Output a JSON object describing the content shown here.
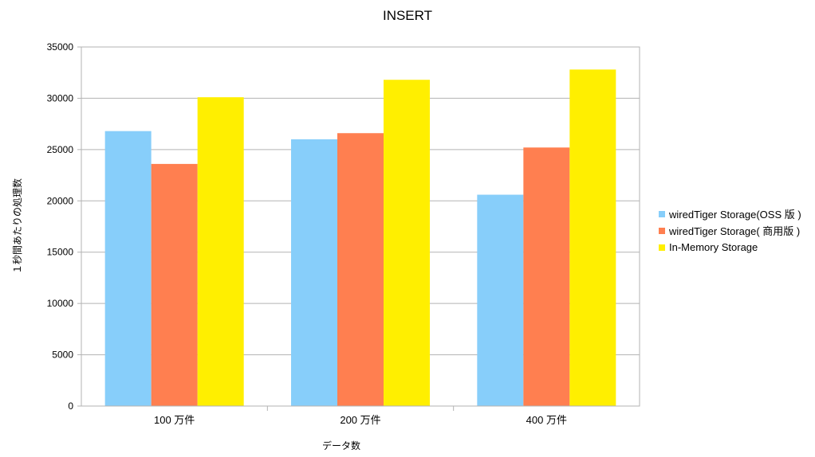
{
  "chart_data": {
    "type": "bar",
    "title": "INSERT",
    "xlabel": "データ数",
    "ylabel": "１秒間あたりの処理数",
    "categories": [
      "100 万件",
      "200 万件",
      "400 万件"
    ],
    "series": [
      {
        "name": "wiredTiger  Storage(OSS 版 )",
        "color": "#87cefa",
        "values": [
          26800,
          26000,
          20600
        ]
      },
      {
        "name": "wiredTiger  Storage( 商用版 )",
        "color": "#ff7f50",
        "values": [
          23600,
          26600,
          25200
        ]
      },
      {
        "name": "In-Memory Storage",
        "color": "#ffef00",
        "values": [
          30100,
          31800,
          32800
        ]
      }
    ],
    "ylim": [
      0,
      35000
    ],
    "yticks": [
      0,
      5000,
      10000,
      15000,
      20000,
      25000,
      30000,
      35000
    ],
    "grid": true,
    "legend": "right"
  }
}
